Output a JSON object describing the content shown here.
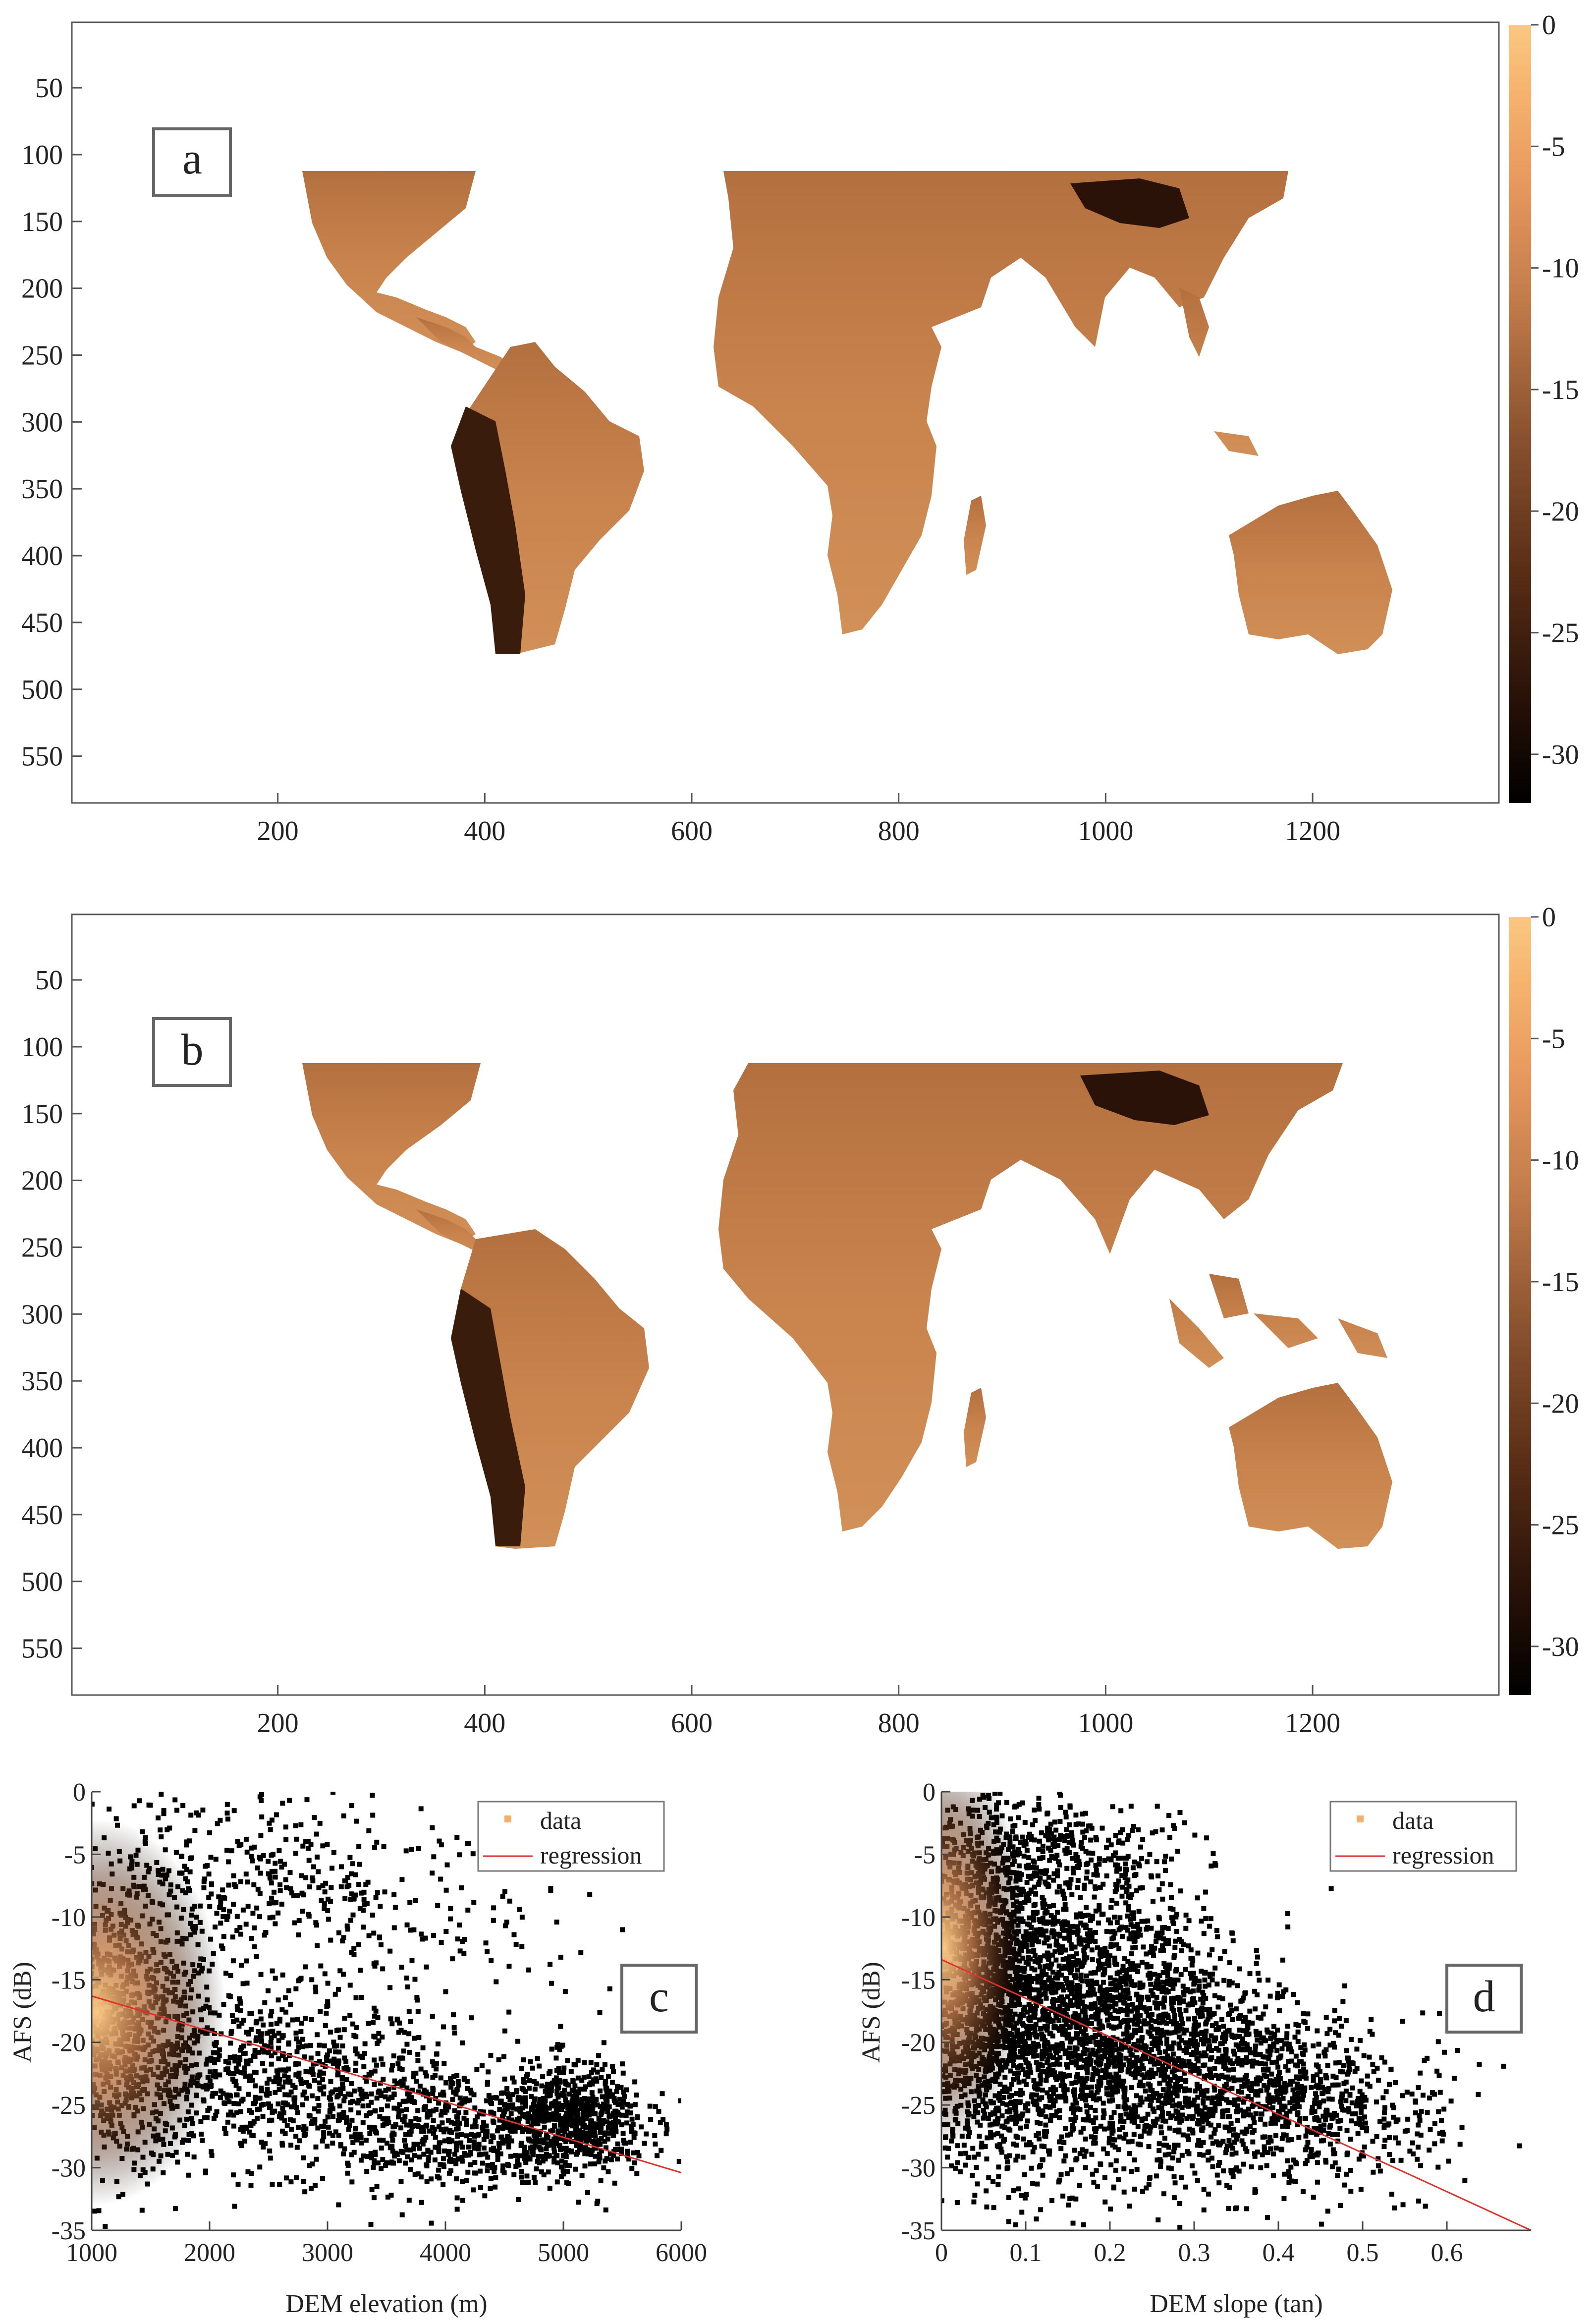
{
  "colors": {
    "axis": "#555555",
    "regression": "#e0302a",
    "data_marker": "#f0b070",
    "land_light": "#d7955c",
    "land_mid": "#b06b3b",
    "land_dark": "#2a1208",
    "colormap": [
      "#000000",
      "#2a1208",
      "#5a2e16",
      "#8c5430",
      "#c07a4a",
      "#e8995f",
      "#f6b46e",
      "#f9c883"
    ]
  },
  "chart_data": [
    {
      "type": "heatmap",
      "panel_label": "a",
      "xticks": [
        200,
        400,
        600,
        800,
        1000,
        1200
      ],
      "yticks": [
        50,
        100,
        150,
        200,
        250,
        300,
        350,
        400,
        450,
        500,
        550
      ],
      "xlim": [
        1,
        1380
      ],
      "ylim": [
        1,
        585
      ],
      "colorbar": {
        "ticks": [
          0,
          -5,
          -10,
          -15,
          -20,
          -25,
          -30
        ],
        "range": [
          -32,
          0
        ]
      }
    },
    {
      "type": "heatmap",
      "panel_label": "b",
      "xticks": [
        200,
        400,
        600,
        800,
        1000,
        1200
      ],
      "yticks": [
        50,
        100,
        150,
        200,
        250,
        300,
        350,
        400,
        450,
        500,
        550
      ],
      "xlim": [
        1,
        1380
      ],
      "ylim": [
        1,
        585
      ],
      "colorbar": {
        "ticks": [
          0,
          -5,
          -10,
          -15,
          -20,
          -25,
          -30
        ],
        "range": [
          -32,
          0
        ]
      }
    },
    {
      "type": "scatter",
      "panel_label": "c",
      "xlabel": "DEM elevation (m)",
      "ylabel": "AFS (dB)",
      "xlim": [
        1000,
        6000
      ],
      "ylim": [
        -35,
        0
      ],
      "xticks": [
        1000,
        2000,
        3000,
        4000,
        5000,
        6000
      ],
      "yticks": [
        0,
        -5,
        -10,
        -15,
        -20,
        -25,
        -30,
        -35
      ],
      "legend": [
        "data",
        "regression"
      ],
      "legend_position": "top-right",
      "regression": {
        "x": [
          1000,
          6000
        ],
        "y": [
          -16.3,
          -30.4
        ]
      },
      "clusters": [
        {
          "cx": 1200,
          "cy": -19,
          "sx": 450,
          "sy": 5.5,
          "n": 1100
        },
        {
          "cx": 2600,
          "cy": -23,
          "sx": 700,
          "sy": 3.5,
          "n": 700
        },
        {
          "cx": 4000,
          "cy": -27,
          "sx": 600,
          "sy": 2.5,
          "n": 600
        },
        {
          "cx": 5100,
          "cy": -26,
          "sx": 300,
          "sy": 2.2,
          "n": 650
        },
        {
          "cx": 2200,
          "cy": -7,
          "sx": 900,
          "sy": 4,
          "n": 420
        },
        {
          "cx": 3700,
          "cy": -13,
          "sx": 700,
          "sy": 4,
          "n": 130
        }
      ]
    },
    {
      "type": "scatter",
      "panel_label": "d",
      "xlabel": "DEM slope (tan)",
      "ylabel": "AFS (dB)",
      "xlim": [
        0,
        0.7
      ],
      "ylim": [
        -35,
        0
      ],
      "xticks": [
        0,
        0.1,
        0.2,
        0.3,
        0.4,
        0.5,
        0.6
      ],
      "yticks": [
        0,
        -5,
        -10,
        -15,
        -20,
        -25,
        -30,
        -35
      ],
      "legend": [
        "data",
        "regression"
      ],
      "legend_position": "top-right",
      "regression": {
        "x": [
          0,
          0.7
        ],
        "y": [
          -13.4,
          -35
        ]
      },
      "clusters": [
        {
          "cx": 0.06,
          "cy": -16,
          "sx": 0.05,
          "sy": 7,
          "n": 1800
        },
        {
          "cx": 0.18,
          "cy": -18,
          "sx": 0.07,
          "sy": 6,
          "n": 1600
        },
        {
          "cx": 0.3,
          "cy": -22,
          "sx": 0.07,
          "sy": 4.5,
          "n": 900
        },
        {
          "cx": 0.43,
          "cy": -25,
          "sx": 0.06,
          "sy": 3.5,
          "n": 450
        },
        {
          "cx": 0.55,
          "cy": -26,
          "sx": 0.05,
          "sy": 3,
          "n": 90
        },
        {
          "cx": 0.12,
          "cy": -5,
          "sx": 0.08,
          "sy": 3,
          "n": 300
        }
      ]
    }
  ]
}
